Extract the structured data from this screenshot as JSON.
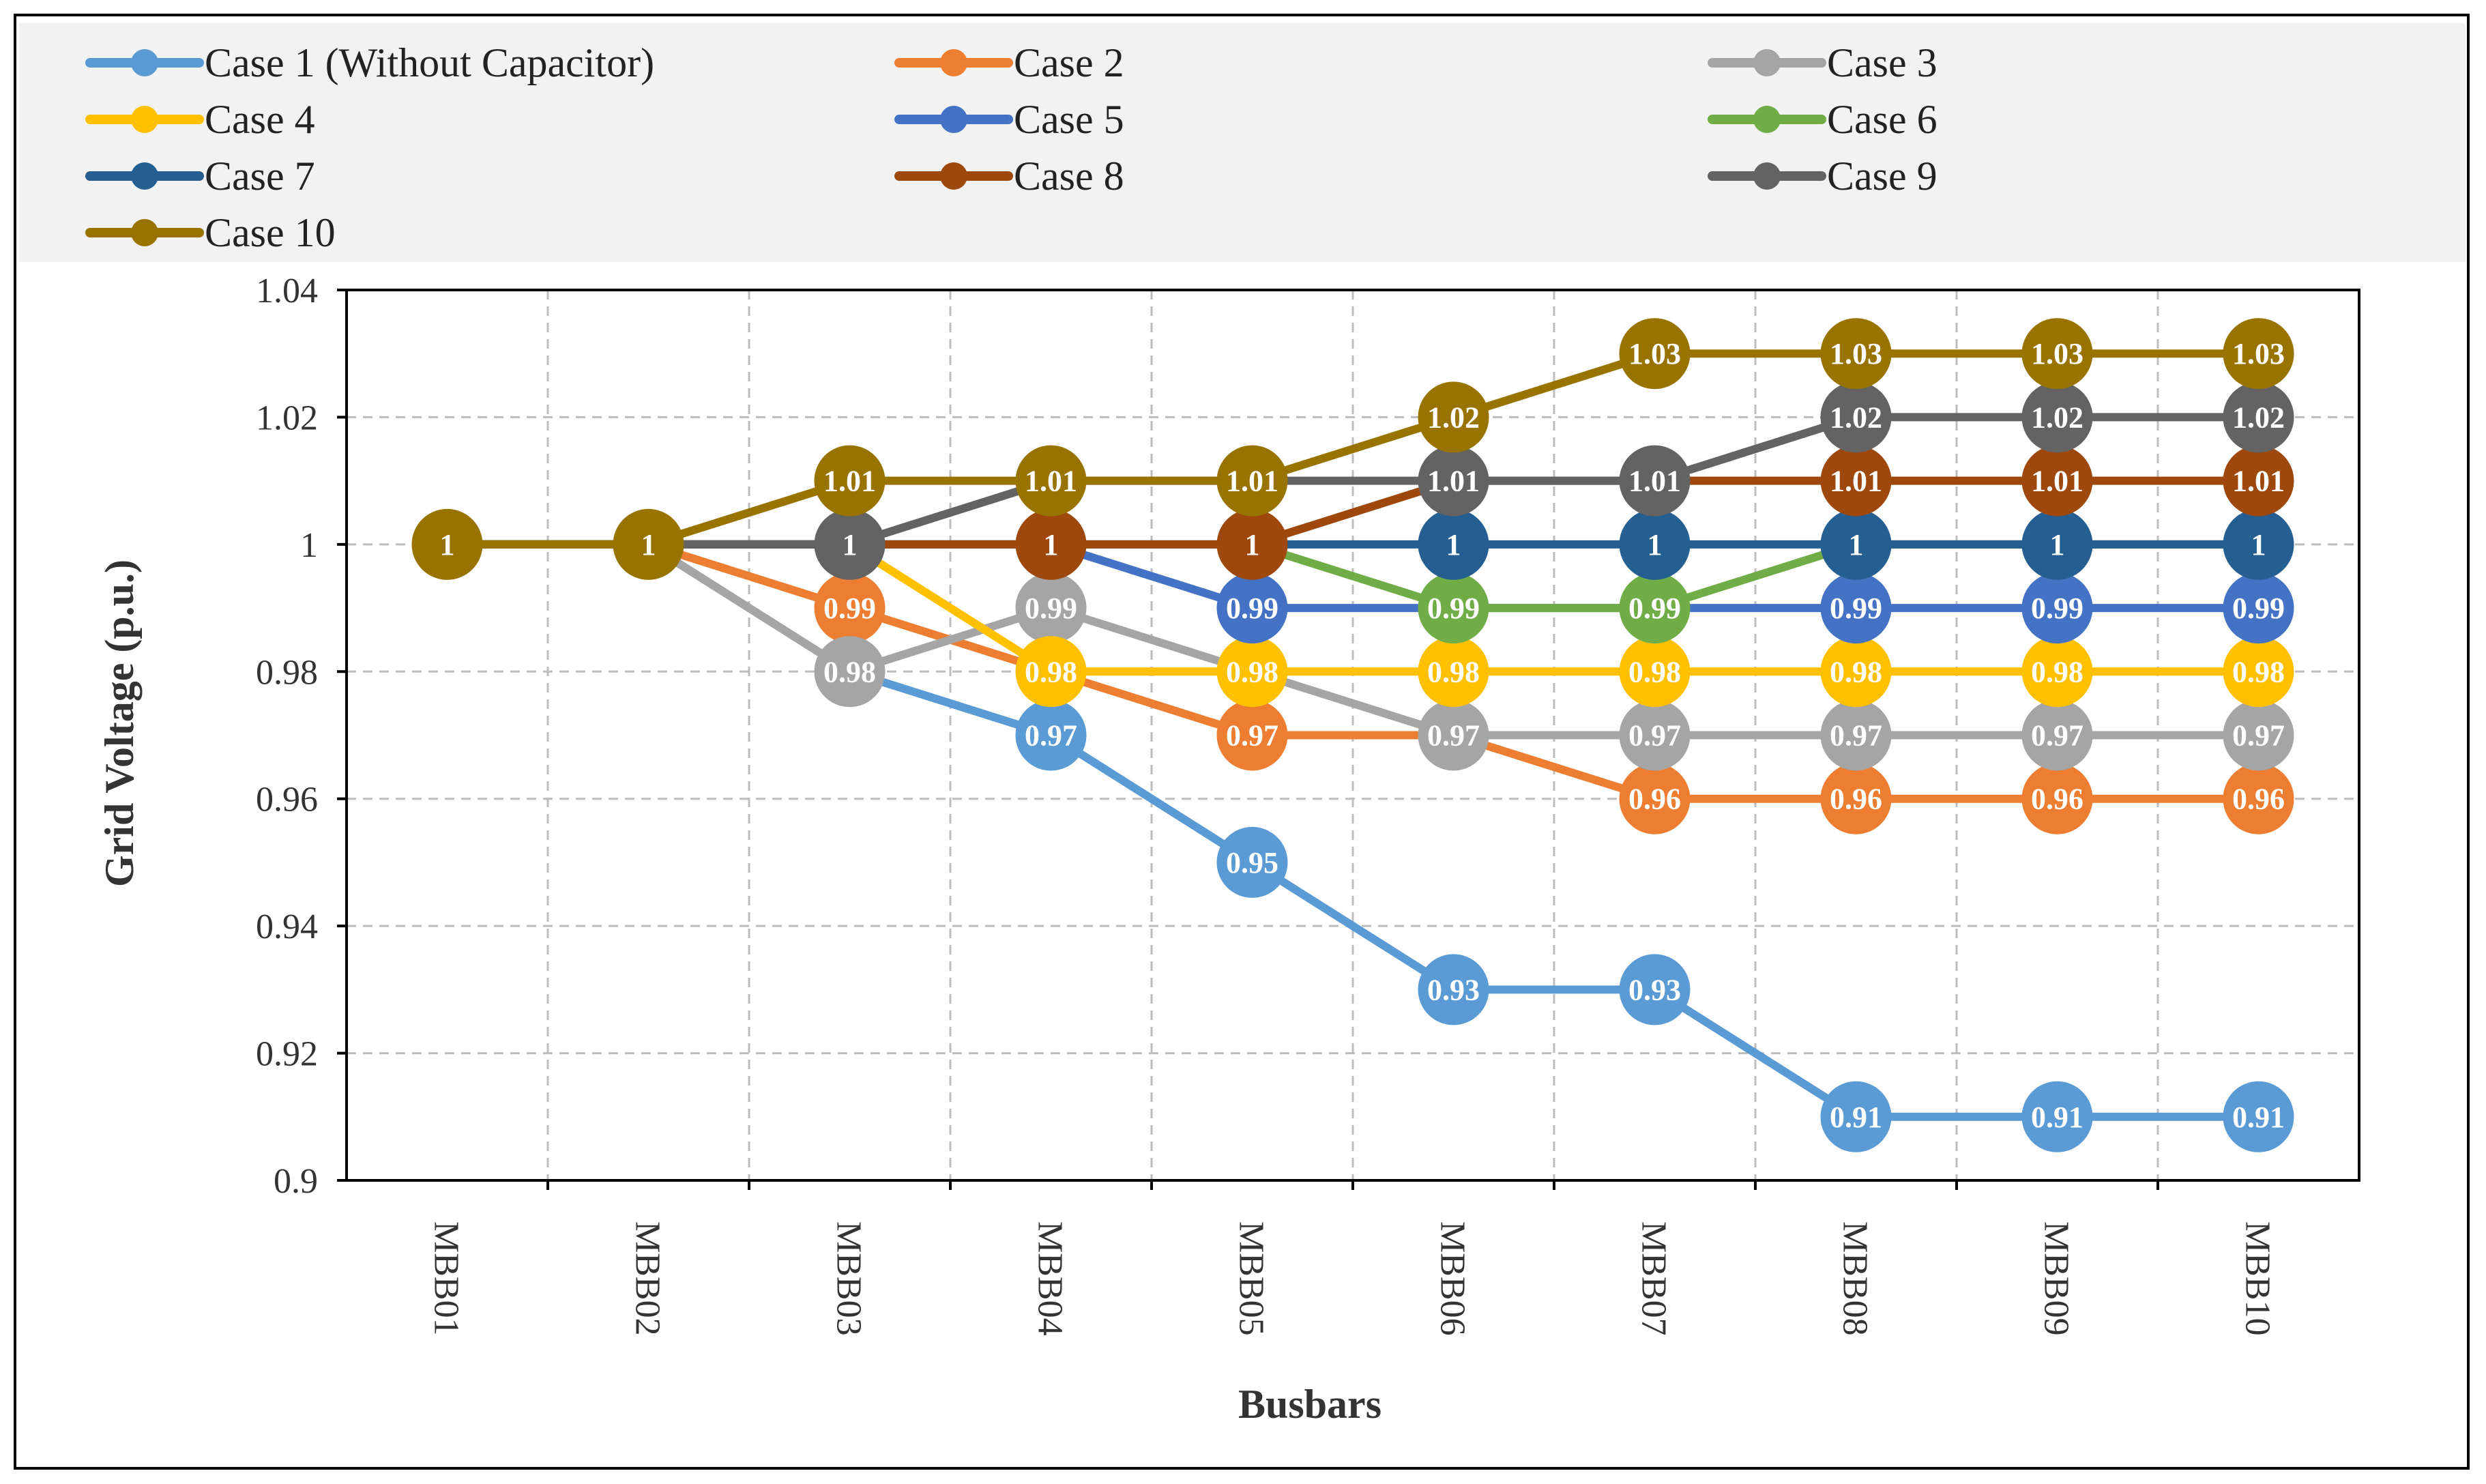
{
  "chart_data": {
    "type": "line",
    "title": "",
    "xlabel": "Busbars",
    "ylabel": "Grid Voltage (p.u.)",
    "ylim": [
      0.9,
      1.04
    ],
    "yticks": [
      "0.9",
      "0.92",
      "0.94",
      "0.96",
      "0.98",
      "1",
      "1.02",
      "1.04"
    ],
    "grid": true,
    "legend_position": "top",
    "categories": [
      "MBB01",
      "MBB02",
      "MBB03",
      "MBB04",
      "MBB05",
      "MBB06",
      "MBB07",
      "MBB08",
      "MBB09",
      "MBB10"
    ],
    "series": [
      {
        "name": "Case 1 (Without Capacitor)",
        "color": "#5B9BD5",
        "values": [
          1,
          1,
          0.98,
          0.97,
          0.95,
          0.93,
          0.93,
          0.91,
          0.91,
          0.91
        ],
        "labels": [
          null,
          null,
          null,
          "0.97",
          "0.95",
          "0.93",
          "0.93",
          "0.91",
          "0.91",
          "0.91"
        ]
      },
      {
        "name": "Case 2",
        "color": "#ED7D31",
        "values": [
          1,
          1,
          0.99,
          0.98,
          0.97,
          0.97,
          0.96,
          0.96,
          0.96,
          0.96
        ],
        "labels": [
          null,
          null,
          "0.99",
          null,
          "0.97",
          null,
          "0.96",
          "0.96",
          "0.96",
          "0.96"
        ]
      },
      {
        "name": "Case 3",
        "color": "#A5A5A5",
        "values": [
          1,
          1,
          0.98,
          0.99,
          0.98,
          0.97,
          0.97,
          0.97,
          0.97,
          0.97
        ],
        "labels": [
          null,
          null,
          "0.98",
          "0.99",
          null,
          "0.97",
          "0.97",
          "0.97",
          "0.97",
          "0.97"
        ]
      },
      {
        "name": "Case 4",
        "color": "#FFC000",
        "values": [
          1,
          1,
          1,
          0.98,
          0.98,
          0.98,
          0.98,
          0.98,
          0.98,
          0.98
        ],
        "labels": [
          null,
          null,
          null,
          "0.98",
          "0.98",
          "0.98",
          "0.98",
          "0.98",
          "0.98",
          "0.98"
        ]
      },
      {
        "name": "Case 5",
        "color": "#4472C4",
        "values": [
          1,
          1,
          1,
          1,
          0.99,
          0.99,
          0.99,
          0.99,
          0.99,
          0.99
        ],
        "labels": [
          null,
          null,
          null,
          null,
          "0.99",
          null,
          null,
          "0.99",
          "0.99",
          "0.99"
        ]
      },
      {
        "name": "Case 6",
        "color": "#70AD47",
        "values": [
          1,
          1,
          1,
          1,
          1,
          0.99,
          0.99,
          1,
          1,
          1
        ],
        "labels": [
          null,
          null,
          null,
          null,
          null,
          "0.99",
          "0.99",
          null,
          null,
          null
        ]
      },
      {
        "name": "Case 7",
        "color": "#255E91",
        "values": [
          1,
          1,
          1,
          1,
          1,
          1,
          1,
          1,
          1,
          1
        ],
        "labels": [
          null,
          null,
          null,
          null,
          null,
          "1",
          "1",
          "1",
          "1",
          "1"
        ]
      },
      {
        "name": "Case 8",
        "color": "#9E480E",
        "values": [
          1,
          1,
          1,
          1,
          1,
          1.01,
          1.01,
          1.01,
          1.01,
          1.01
        ],
        "labels": [
          null,
          null,
          null,
          "1",
          "1",
          null,
          null,
          "1.01",
          "1.01",
          "1.01"
        ]
      },
      {
        "name": "Case 9",
        "color": "#636363",
        "values": [
          1,
          1,
          1,
          1.01,
          1.01,
          1.01,
          1.01,
          1.02,
          1.02,
          1.02
        ],
        "labels": [
          null,
          null,
          "1",
          null,
          null,
          "1.01",
          "1.01",
          "1.02",
          "1.02",
          "1.02"
        ]
      },
      {
        "name": "Case 10",
        "color": "#997300",
        "values": [
          1,
          1,
          1.01,
          1.01,
          1.01,
          1.02,
          1.03,
          1.03,
          1.03,
          1.03
        ],
        "labels": [
          "1",
          "1",
          "1.01",
          "1.01",
          "1.01",
          "1.02",
          "1.03",
          "1.03",
          "1.03",
          "1.03"
        ]
      }
    ]
  }
}
